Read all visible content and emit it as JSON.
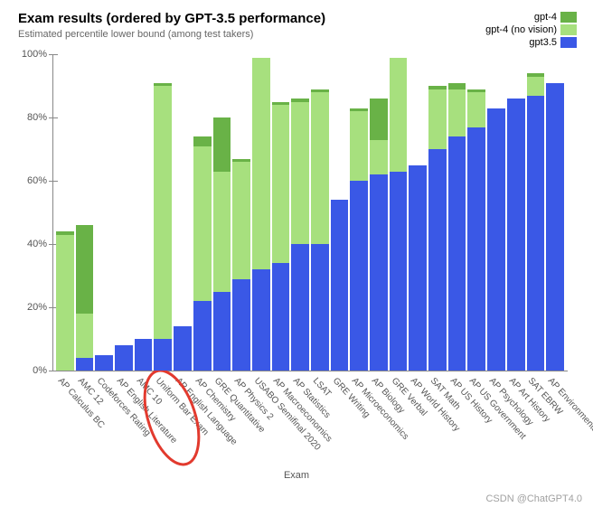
{
  "title": "Exam results (ordered by GPT-3.5 performance)",
  "subtitle": "Estimated percentile lower bound (among test takers)",
  "x_axis_title": "Exam",
  "watermark": "CSDN @ChatGPT4.0",
  "colors": {
    "gpt4": "#69b247",
    "gpt4_novision": "#a7e07e",
    "gpt35": "#3a58e6",
    "annotation": "#e23a2e",
    "text": "#555555",
    "axis": "#888888"
  },
  "chart": {
    "type": "bar",
    "ylim": [
      0,
      100
    ],
    "yticks": [
      0,
      20,
      40,
      60,
      80,
      100
    ],
    "ytick_labels": [
      "0%",
      "20%",
      "40%",
      "60%",
      "80%",
      "100%"
    ]
  },
  "legend": [
    {
      "label": "gpt-4",
      "color_key": "gpt4"
    },
    {
      "label": "gpt-4 (no vision)",
      "color_key": "gpt4_novision"
    },
    {
      "label": "gpt3.5",
      "color_key": "gpt35"
    }
  ],
  "series": [
    {
      "label": "AP Calculus BC",
      "gpt35": 0,
      "gpt4_nv": 43,
      "gpt4": 44
    },
    {
      "label": "AMC 12",
      "gpt35": 4,
      "gpt4_nv": 18,
      "gpt4": 46
    },
    {
      "label": "Codeforces Rating",
      "gpt35": 5,
      "gpt4_nv": 5,
      "gpt4": 5
    },
    {
      "label": "AP English Literature",
      "gpt35": 8,
      "gpt4_nv": 8,
      "gpt4": 8
    },
    {
      "label": "AMC 10",
      "gpt35": 10,
      "gpt4_nv": 10,
      "gpt4": 10
    },
    {
      "label": "Uniform Bar Exam",
      "gpt35": 10,
      "gpt4_nv": 90,
      "gpt4": 91
    },
    {
      "label": "AP English Language",
      "gpt35": 14,
      "gpt4_nv": 14,
      "gpt4": 14
    },
    {
      "label": "AP Chemistry",
      "gpt35": 22,
      "gpt4_nv": 71,
      "gpt4": 74
    },
    {
      "label": "GRE Quantitative",
      "gpt35": 25,
      "gpt4_nv": 63,
      "gpt4": 80
    },
    {
      "label": "AP Physics 2",
      "gpt35": 29,
      "gpt4_nv": 66,
      "gpt4": 67
    },
    {
      "label": "USABO Semifinal 2020",
      "gpt35": 32,
      "gpt4_nv": 99,
      "gpt4": 99
    },
    {
      "label": "AP Macroeconomics",
      "gpt35": 34,
      "gpt4_nv": 84,
      "gpt4": 85
    },
    {
      "label": "AP Statistics",
      "gpt35": 40,
      "gpt4_nv": 85,
      "gpt4": 86
    },
    {
      "label": "LSAT",
      "gpt35": 40,
      "gpt4_nv": 88,
      "gpt4": 89
    },
    {
      "label": "GRE Writing",
      "gpt35": 54,
      "gpt4_nv": 54,
      "gpt4": 54
    },
    {
      "label": "AP Microeconomics",
      "gpt35": 60,
      "gpt4_nv": 82,
      "gpt4": 83
    },
    {
      "label": "AP Biology",
      "gpt35": 62,
      "gpt4_nv": 73,
      "gpt4": 86
    },
    {
      "label": "GRE Verbal",
      "gpt35": 63,
      "gpt4_nv": 99,
      "gpt4": 99
    },
    {
      "label": "AP World History",
      "gpt35": 65,
      "gpt4_nv": 65,
      "gpt4": 65
    },
    {
      "label": "SAT Math",
      "gpt35": 70,
      "gpt4_nv": 89,
      "gpt4": 90
    },
    {
      "label": "AP US History",
      "gpt35": 74,
      "gpt4_nv": 89,
      "gpt4": 91
    },
    {
      "label": "AP US Government",
      "gpt35": 77,
      "gpt4_nv": 88,
      "gpt4": 89
    },
    {
      "label": "AP Psychology",
      "gpt35": 83,
      "gpt4_nv": 83,
      "gpt4": 83
    },
    {
      "label": "AP Art History",
      "gpt35": 86,
      "gpt4_nv": 86,
      "gpt4": 86
    },
    {
      "label": "SAT EBRW",
      "gpt35": 87,
      "gpt4_nv": 93,
      "gpt4": 94
    },
    {
      "label": "AP Environmental Science",
      "gpt35": 91,
      "gpt4_nv": 91,
      "gpt4": 91
    }
  ],
  "annotation": {
    "target_index": 5,
    "shape": "ellipse"
  }
}
